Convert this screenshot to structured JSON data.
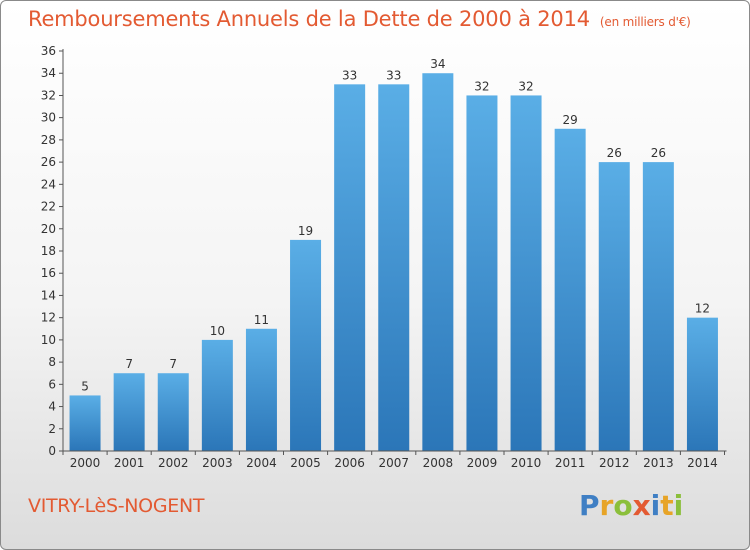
{
  "title": "Remboursements Annuels de la Dette de 2000 à 2014",
  "unit_note": "(en milliers d'€)",
  "city": "VITRY-LèS-NOGENT",
  "brand": {
    "name": "Proxiti",
    "letters": [
      {
        "ch": "P",
        "color": "#3f7fc4"
      },
      {
        "ch": "r",
        "color": "#e7a427"
      },
      {
        "ch": "o",
        "color": "#8bbf3b"
      },
      {
        "ch": "x",
        "color": "#e35a32"
      },
      {
        "ch": "i",
        "color": "#3f7fc4"
      },
      {
        "ch": "t",
        "color": "#e7a427"
      },
      {
        "ch": "i",
        "color": "#8bbf3b"
      }
    ]
  },
  "colors": {
    "bar_top": "#5aaee6",
    "bar_bottom": "#2b76b8",
    "accent": "#e35a32",
    "axis": "#555555",
    "grid": "#bbbbbb"
  },
  "chart_data": {
    "type": "bar",
    "title": "Remboursements Annuels de la Dette de 2000 à 2014",
    "unit": "(en milliers d'€)",
    "categories": [
      "2000",
      "2001",
      "2002",
      "2003",
      "2004",
      "2005",
      "2006",
      "2007",
      "2008",
      "2009",
      "2010",
      "2011",
      "2012",
      "2013",
      "2014"
    ],
    "values": [
      5,
      7,
      7,
      10,
      11,
      19,
      33,
      33,
      34,
      32,
      32,
      29,
      26,
      26,
      12
    ],
    "ylim": [
      0,
      36
    ],
    "yticks": [
      0,
      2,
      4,
      6,
      8,
      10,
      12,
      14,
      16,
      18,
      20,
      22,
      24,
      26,
      28,
      30,
      32,
      34,
      36
    ],
    "xlabel": "",
    "ylabel": "",
    "grid": false,
    "data_labels": true
  }
}
